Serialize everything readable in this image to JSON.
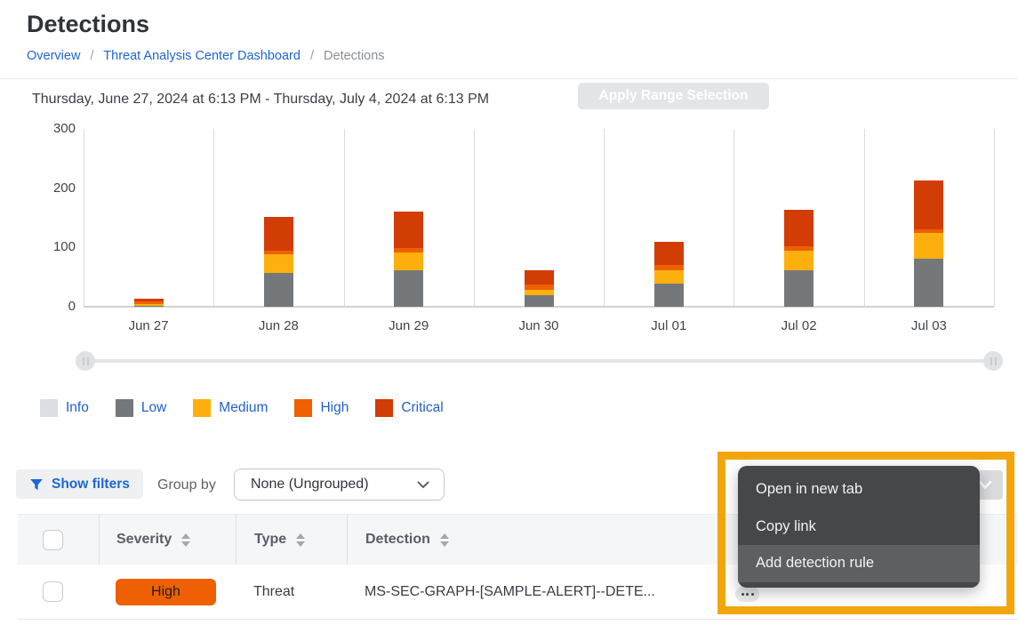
{
  "page": {
    "title": "Detections"
  },
  "breadcrumb": {
    "separator": "/",
    "items": [
      {
        "label": "Overview"
      },
      {
        "label": "Threat Analysis Center Dashboard"
      },
      {
        "label": "Detections"
      }
    ]
  },
  "range_bar": {
    "date_range": "Thursday, June 27, 2024 at 6:13 PM - Thursday, July 4, 2024 at 6:13 PM",
    "apply_button_label": "Apply Range Selection"
  },
  "chart_data": {
    "type": "bar",
    "stacked": true,
    "categories": [
      "Jun 27",
      "Jun 28",
      "Jun 29",
      "Jun 30",
      "Jul 01",
      "Jul 02",
      "Jul 03"
    ],
    "series": [
      {
        "name": "Info",
        "color": "#dcdee1",
        "values": [
          0,
          0,
          0,
          0,
          0,
          0,
          0
        ]
      },
      {
        "name": "Low",
        "color": "#75787b",
        "values": [
          2,
          57,
          61,
          20,
          39,
          61,
          81
        ]
      },
      {
        "name": "Medium",
        "color": "#fdb00d",
        "values": [
          2,
          32,
          31,
          9,
          23,
          34,
          44
        ]
      },
      {
        "name": "High",
        "color": "#ee6002",
        "values": [
          5,
          6,
          7,
          8,
          8,
          7,
          6
        ]
      },
      {
        "name": "Critical",
        "color": "#d23c05",
        "values": [
          5,
          57,
          61,
          24,
          40,
          61,
          82
        ]
      }
    ],
    "totals": [
      14,
      152,
      160,
      61,
      110,
      162,
      213
    ],
    "title": "",
    "xlabel": "",
    "ylabel": "",
    "ylim": [
      0,
      300
    ],
    "yticks": [
      0,
      100,
      200,
      300
    ],
    "grid": "vertical-only",
    "legend_position": "below"
  },
  "toolbar": {
    "show_filters_label": "Show filters",
    "group_by_label": "Group by",
    "group_by_value": "None (Ungrouped)"
  },
  "table": {
    "columns": [
      {
        "label": "Severity",
        "sortable": true
      },
      {
        "label": "Type",
        "sortable": true
      },
      {
        "label": "Detection",
        "sortable": true
      }
    ],
    "rows": [
      {
        "severity": "High",
        "severity_color": "#ee6002",
        "type": "Threat",
        "detection": "MS-SEC-GRAPH-[SAMPLE-ALERT]--DETE..."
      }
    ]
  },
  "context_menu": {
    "items": [
      {
        "label": "Open in new tab"
      },
      {
        "label": "Copy link"
      },
      {
        "label": "Add detection rule",
        "highlighted": true
      }
    ]
  },
  "annotation": {
    "highlight_color": "#f2a60d"
  }
}
